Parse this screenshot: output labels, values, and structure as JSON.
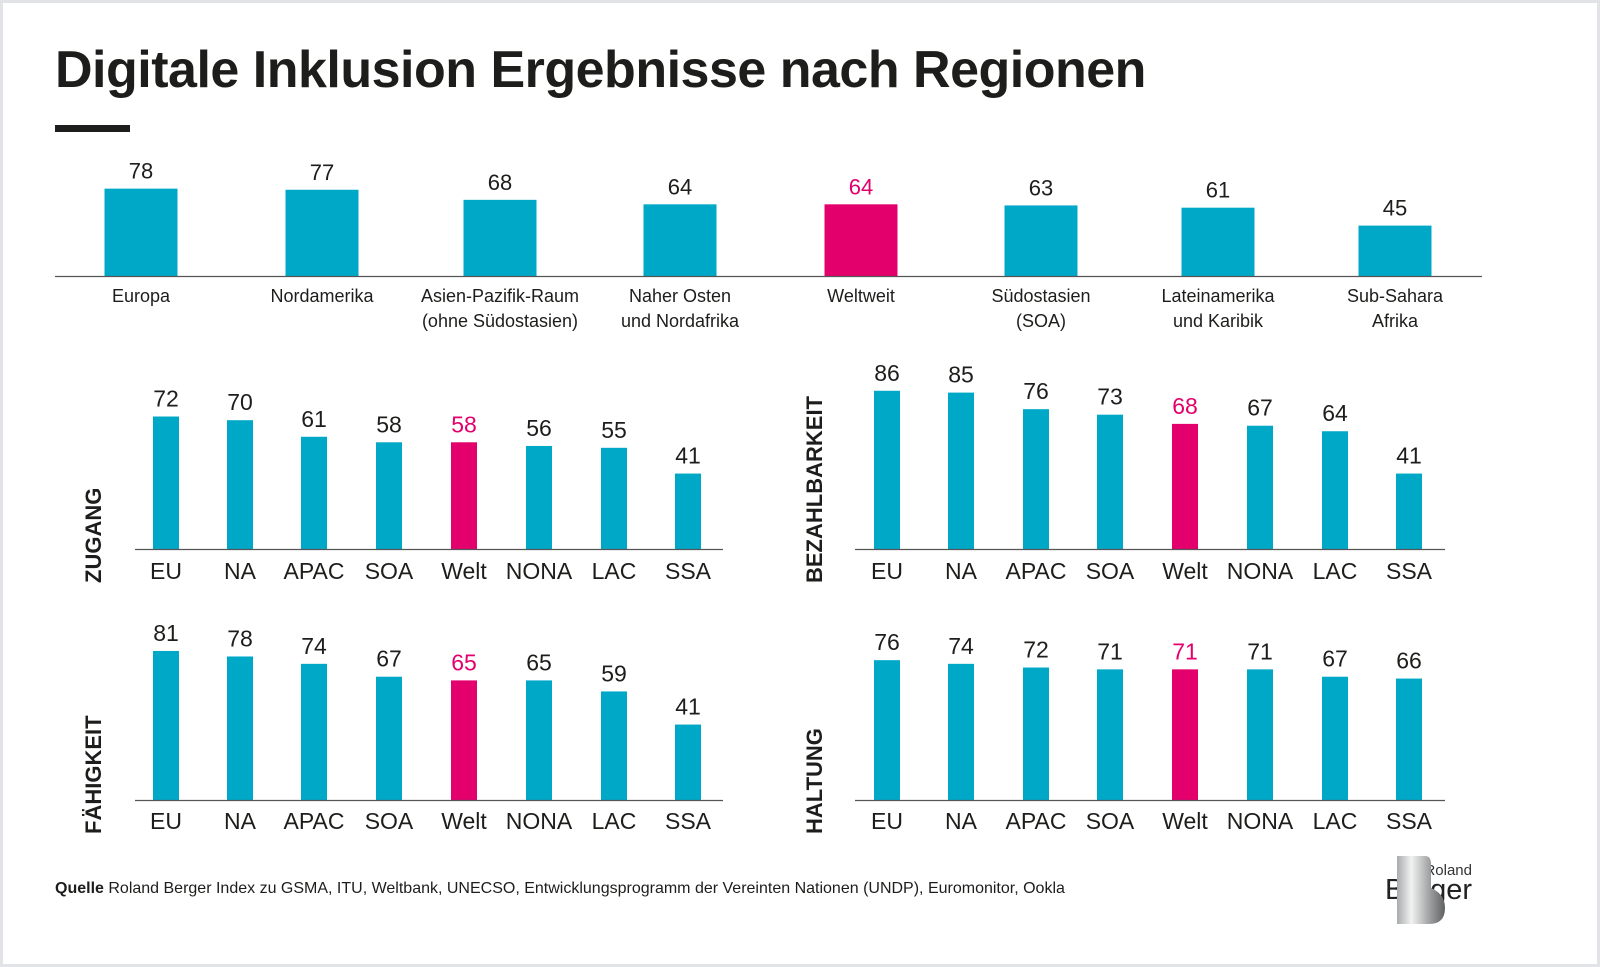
{
  "title": "Digitale Inklusion Ergebnisse nach Regionen",
  "colors": {
    "bar": "#00a8c8",
    "highlight": "#e3006d",
    "text": "#1d1d1b"
  },
  "chart_data": [
    {
      "type": "bar",
      "title": "",
      "categories": [
        "Europa",
        "Nordamerika",
        "Asien-Pazifik-Raum\n(ohne Südostasien)",
        "Naher Osten\nund Nordafrika",
        "Weltweit",
        "Südostasien\n(SOA)",
        "Lateinamerika\nund Karibik",
        "Sub-Sahara\nAfrika"
      ],
      "values": [
        78,
        77,
        68,
        64,
        64,
        63,
        61,
        45
      ],
      "highlight": "Weltweit"
    },
    {
      "type": "bar",
      "ylabel": "ZUGANG",
      "categories": [
        "EU",
        "NA",
        "APAC",
        "SOA",
        "Welt",
        "NONA",
        "LAC",
        "SSA"
      ],
      "values": [
        72,
        70,
        61,
        58,
        58,
        56,
        55,
        41
      ],
      "highlight": "Welt"
    },
    {
      "type": "bar",
      "ylabel": "BEZAHLBARKEIT",
      "categories": [
        "EU",
        "NA",
        "APAC",
        "SOA",
        "Welt",
        "NONA",
        "LAC",
        "SSA"
      ],
      "values": [
        86,
        85,
        76,
        73,
        68,
        67,
        64,
        41
      ],
      "highlight": "Welt"
    },
    {
      "type": "bar",
      "ylabel": "FÄHIGKEIT",
      "categories": [
        "EU",
        "NA",
        "APAC",
        "SOA",
        "Welt",
        "NONA",
        "LAC",
        "SSA"
      ],
      "values": [
        81,
        78,
        74,
        67,
        65,
        65,
        59,
        41
      ],
      "highlight": "Welt"
    },
    {
      "type": "bar",
      "ylabel": "HALTUNG",
      "categories": [
        "EU",
        "NA",
        "APAC",
        "SOA",
        "Welt",
        "NONA",
        "LAC",
        "SSA"
      ],
      "values": [
        76,
        74,
        72,
        71,
        71,
        71,
        67,
        66
      ],
      "highlight": "Welt"
    }
  ],
  "source": {
    "label": "Quelle",
    "text": "Roland Berger Index zu GSMA, ITU, Weltbank, UNECSO, Entwicklungsprogramm der Vereinten Nationen (UNDP), Euromonitor, Ookla"
  },
  "logo": {
    "line1": "Roland",
    "line2": "Berger"
  }
}
